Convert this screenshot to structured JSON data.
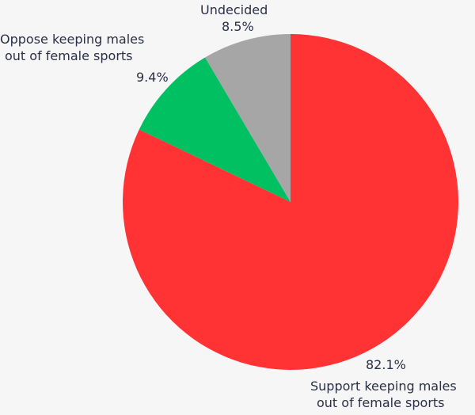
{
  "chart_data": {
    "type": "pie",
    "title": "",
    "slices": [
      {
        "label_lines": [
          "Support keeping males",
          "out of female sports"
        ],
        "value": 82.1,
        "display": "82.1%",
        "color": "#ff3334"
      },
      {
        "label_lines": [
          "Oppose keeping males",
          "out of female sports"
        ],
        "value": 9.4,
        "display": "9.4%",
        "color": "#00c062"
      },
      {
        "label_lines": [
          "Undecided"
        ],
        "value": 8.5,
        "display": "8.5%",
        "color": "#a6a6a6"
      }
    ],
    "start_angle": "12 o'clock",
    "direction": "clockwise",
    "legend": "none"
  }
}
